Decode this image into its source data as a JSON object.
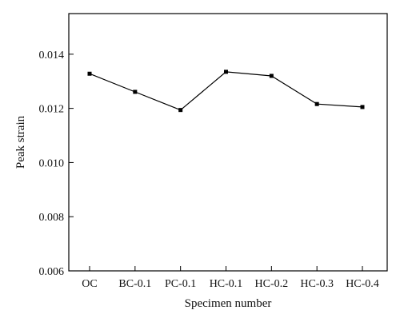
{
  "chart_data": {
    "type": "line",
    "title": "",
    "xlabel": "Specimen number",
    "ylabel": "Peak strain",
    "categories": [
      "OC",
      "BC-0.1",
      "PC-0.1",
      "HC-0.1",
      "HC-0.2",
      "HC-0.3",
      "HC-0.4"
    ],
    "series": [
      {
        "name": "",
        "values": [
          0.01328,
          0.01261,
          0.01194,
          0.01335,
          0.0132,
          0.01216,
          0.01205
        ],
        "color": "#000000"
      }
    ],
    "ylim": [
      0.006,
      0.0155
    ],
    "yticks": [
      0.006,
      0.008,
      0.01,
      0.012,
      0.014
    ],
    "ytick_labels": [
      "0.006",
      "0.008",
      "0.010",
      "0.012",
      "0.014"
    ],
    "grid": false,
    "legend": "none"
  }
}
